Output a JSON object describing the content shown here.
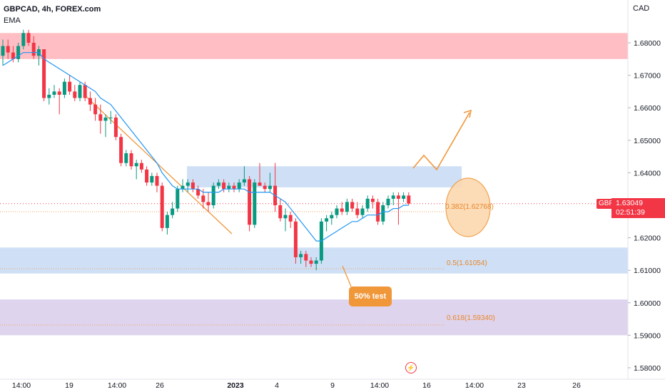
{
  "header": {
    "symbol_line": "GBPCAD, 4h, FOREX.com",
    "indicator": "EMA",
    "currency": "CAD"
  },
  "price_badge": {
    "symbol": "GBPCAD",
    "price": "1.63049",
    "countdown": "02:51:39"
  },
  "annotations": {
    "callout": "50% test",
    "fib_382": "0.382(1.62768)",
    "fib_50": "0.5(1.61054)",
    "fib_618": "0.618(1.59340)"
  },
  "colors": {
    "up": "#089981",
    "down": "#f23645",
    "ema": "#2196f3",
    "resistance_zone": "#ffb3b8",
    "blue_zone": "#c7dbf5",
    "purple_zone": "#d9cdea",
    "orange": "#f0973a"
  },
  "chart_data": {
    "type": "candlestick",
    "symbol": "GBPCAD",
    "timeframe": "4h",
    "ylim": [
      1.575,
      1.688
    ],
    "y_ticks": [
      "1.68000",
      "1.67000",
      "1.66000",
      "1.65000",
      "1.64000",
      "1.63000",
      "1.62000",
      "1.61000",
      "1.60000",
      "1.59000",
      "1.58000"
    ],
    "x_ticks": [
      "14:00",
      "19",
      "14:00",
      "26",
      "2023",
      "4",
      "9",
      "14:00",
      "16",
      "14:00",
      "23",
      "26"
    ],
    "last_price": 1.63049,
    "zones": [
      {
        "low": 1.675,
        "high": 1.683,
        "color": "red"
      },
      {
        "low": 1.6355,
        "high": 1.642,
        "color": "blue"
      },
      {
        "low": 1.609,
        "high": 1.617,
        "color": "blue"
      },
      {
        "low": 1.59,
        "high": 1.601,
        "color": "purple"
      }
    ],
    "fib_levels": [
      {
        "ratio": 0.382,
        "price": 1.62768
      },
      {
        "ratio": 0.5,
        "price": 1.61054
      },
      {
        "ratio": 0.618,
        "price": 1.5934
      }
    ],
    "candles": [
      [
        1.676,
        1.681,
        1.673,
        1.679
      ],
      [
        1.679,
        1.681,
        1.675,
        1.677
      ],
      [
        1.677,
        1.679,
        1.674,
        1.675
      ],
      [
        1.675,
        1.68,
        1.674,
        1.679
      ],
      [
        1.679,
        1.684,
        1.678,
        1.683
      ],
      [
        1.683,
        1.684,
        1.679,
        1.68
      ],
      [
        1.68,
        1.682,
        1.675,
        1.676
      ],
      [
        1.676,
        1.679,
        1.673,
        1.678
      ],
      [
        1.678,
        1.678,
        1.662,
        1.663
      ],
      [
        1.663,
        1.666,
        1.661,
        1.664
      ],
      [
        1.664,
        1.667,
        1.663,
        1.665
      ],
      [
        1.665,
        1.666,
        1.658,
        1.664
      ],
      [
        1.664,
        1.669,
        1.663,
        1.668
      ],
      [
        1.668,
        1.67,
        1.664,
        1.665
      ],
      [
        1.665,
        1.667,
        1.662,
        1.663
      ],
      [
        1.663,
        1.668,
        1.662,
        1.667
      ],
      [
        1.667,
        1.668,
        1.662,
        1.663
      ],
      [
        1.663,
        1.665,
        1.659,
        1.661
      ],
      [
        1.661,
        1.663,
        1.656,
        1.658
      ],
      [
        1.658,
        1.661,
        1.652,
        1.656
      ],
      [
        1.656,
        1.658,
        1.651,
        1.657
      ],
      [
        1.657,
        1.659,
        1.655,
        1.657
      ],
      [
        1.657,
        1.658,
        1.65,
        1.651
      ],
      [
        1.651,
        1.652,
        1.642,
        1.643
      ],
      [
        1.643,
        1.647,
        1.642,
        1.646
      ],
      [
        1.646,
        1.647,
        1.641,
        1.642
      ],
      [
        1.642,
        1.644,
        1.638,
        1.643
      ],
      [
        1.643,
        1.644,
        1.64,
        1.641
      ],
      [
        1.641,
        1.642,
        1.636,
        1.637
      ],
      [
        1.637,
        1.64,
        1.636,
        1.639
      ],
      [
        1.639,
        1.64,
        1.634,
        1.636
      ],
      [
        1.636,
        1.637,
        1.622,
        1.623
      ],
      [
        1.623,
        1.628,
        1.621,
        1.627
      ],
      [
        1.627,
        1.631,
        1.626,
        1.629
      ],
      [
        1.629,
        1.636,
        1.628,
        1.635
      ],
      [
        1.635,
        1.638,
        1.634,
        1.636
      ],
      [
        1.636,
        1.638,
        1.634,
        1.637
      ],
      [
        1.637,
        1.638,
        1.634,
        1.635
      ],
      [
        1.635,
        1.636,
        1.632,
        1.633
      ],
      [
        1.633,
        1.635,
        1.629,
        1.631
      ],
      [
        1.631,
        1.634,
        1.628,
        1.63
      ],
      [
        1.63,
        1.637,
        1.629,
        1.636
      ],
      [
        1.636,
        1.638,
        1.635,
        1.637
      ],
      [
        1.637,
        1.638,
        1.634,
        1.635
      ],
      [
        1.635,
        1.637,
        1.634,
        1.636
      ],
      [
        1.636,
        1.637,
        1.634,
        1.635
      ],
      [
        1.635,
        1.638,
        1.634,
        1.637
      ],
      [
        1.637,
        1.642,
        1.636,
        1.638
      ],
      [
        1.638,
        1.639,
        1.622,
        1.624
      ],
      [
        1.624,
        1.638,
        1.623,
        1.637
      ],
      [
        1.637,
        1.643,
        1.636,
        1.636
      ],
      [
        1.636,
        1.637,
        1.634,
        1.635
      ],
      [
        1.635,
        1.64,
        1.634,
        1.636
      ],
      [
        1.636,
        1.643,
        1.628,
        1.63
      ],
      [
        1.63,
        1.632,
        1.625,
        1.626
      ],
      [
        1.626,
        1.629,
        1.622,
        1.627
      ],
      [
        1.627,
        1.628,
        1.623,
        1.625
      ],
      [
        1.625,
        1.626,
        1.612,
        1.614
      ],
      [
        1.614,
        1.616,
        1.612,
        1.615
      ],
      [
        1.615,
        1.616,
        1.611,
        1.613
      ],
      [
        1.613,
        1.614,
        1.611,
        1.612
      ],
      [
        1.612,
        1.614,
        1.61,
        1.613
      ],
      [
        1.613,
        1.626,
        1.612,
        1.625
      ],
      [
        1.625,
        1.627,
        1.622,
        1.626
      ],
      [
        1.626,
        1.628,
        1.624,
        1.627
      ],
      [
        1.627,
        1.63,
        1.626,
        1.629
      ],
      [
        1.629,
        1.631,
        1.627,
        1.628
      ],
      [
        1.628,
        1.632,
        1.627,
        1.631
      ],
      [
        1.631,
        1.632,
        1.628,
        1.629
      ],
      [
        1.629,
        1.631,
        1.626,
        1.627
      ],
      [
        1.627,
        1.63,
        1.626,
        1.629
      ],
      [
        1.629,
        1.633,
        1.628,
        1.632
      ],
      [
        1.632,
        1.633,
        1.629,
        1.631
      ],
      [
        1.631,
        1.632,
        1.624,
        1.625
      ],
      [
        1.625,
        1.631,
        1.624,
        1.63
      ],
      [
        1.63,
        1.633,
        1.629,
        1.632
      ],
      [
        1.632,
        1.634,
        1.63,
        1.633
      ],
      [
        1.633,
        1.634,
        1.624,
        1.632
      ],
      [
        1.632,
        1.634,
        1.631,
        1.633
      ],
      [
        1.633,
        1.634,
        1.63,
        1.6305
      ]
    ],
    "ema": [
      1.673,
      1.674,
      1.675,
      1.676,
      1.677,
      1.677,
      1.677,
      1.677,
      1.675,
      1.674,
      1.673,
      1.672,
      1.671,
      1.67,
      1.669,
      1.668,
      1.667,
      1.666,
      1.665,
      1.663,
      1.662,
      1.661,
      1.659,
      1.657,
      1.655,
      1.653,
      1.651,
      1.649,
      1.647,
      1.645,
      1.643,
      1.64,
      1.638,
      1.636,
      1.635,
      1.635,
      1.635,
      1.635,
      1.635,
      1.634,
      1.634,
      1.634,
      1.634,
      1.635,
      1.635,
      1.635,
      1.635,
      1.635,
      1.634,
      1.634,
      1.634,
      1.634,
      1.634,
      1.633,
      1.632,
      1.631,
      1.629,
      1.627,
      1.625,
      1.623,
      1.621,
      1.619,
      1.619,
      1.62,
      1.621,
      1.622,
      1.623,
      1.624,
      1.625,
      1.625,
      1.626,
      1.627,
      1.627,
      1.627,
      1.628,
      1.628,
      1.629,
      1.629,
      1.63,
      1.63
    ]
  }
}
